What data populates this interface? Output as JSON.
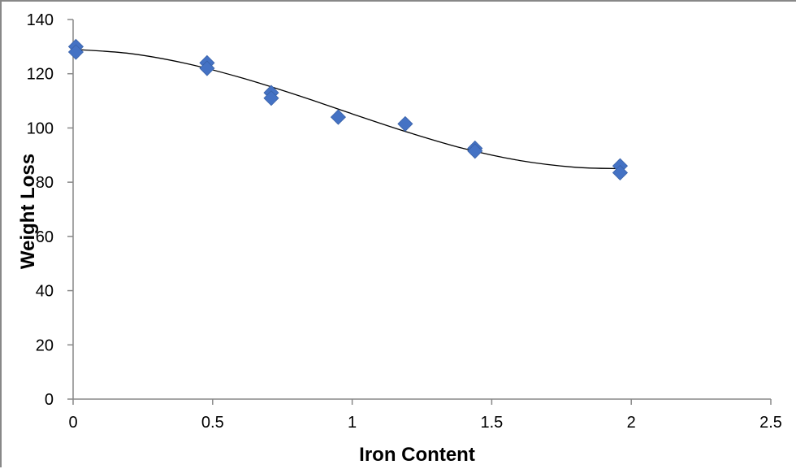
{
  "chart_data": {
    "type": "scatter",
    "title": "",
    "xlabel": "Iron Content",
    "ylabel": "Weight Loss",
    "xlim": [
      0,
      2.5
    ],
    "ylim": [
      0,
      140
    ],
    "x_ticks": [
      "0",
      "0.5",
      "1",
      "1.5",
      "2",
      "2.5"
    ],
    "y_ticks": [
      "0",
      "20",
      "40",
      "60",
      "80",
      "100",
      "120",
      "140"
    ],
    "grid": false,
    "legend": "none",
    "marker": "diamond",
    "marker_color": "#4472C4",
    "trendline_color": "#000000",
    "points": [
      {
        "x": 0.01,
        "y": 130
      },
      {
        "x": 0.01,
        "y": 128
      },
      {
        "x": 0.48,
        "y": 124
      },
      {
        "x": 0.48,
        "y": 122
      },
      {
        "x": 0.71,
        "y": 113
      },
      {
        "x": 0.71,
        "y": 111
      },
      {
        "x": 0.95,
        "y": 104
      },
      {
        "x": 1.19,
        "y": 101.5
      },
      {
        "x": 1.44,
        "y": 92.5
      },
      {
        "x": 1.44,
        "y": 91.5
      },
      {
        "x": 1.96,
        "y": 86
      },
      {
        "x": 1.96,
        "y": 83.5
      }
    ],
    "trendline": {
      "type": "polynomial",
      "x_range": [
        0,
        1.96
      ],
      "curve_points": [
        {
          "x": 0.0,
          "y": 129
        },
        {
          "x": 0.2,
          "y": 127.5
        },
        {
          "x": 0.4,
          "y": 123.9
        },
        {
          "x": 0.6,
          "y": 118.6
        },
        {
          "x": 0.8,
          "y": 112.2
        },
        {
          "x": 1.0,
          "y": 105.2
        },
        {
          "x": 1.2,
          "y": 98.4
        },
        {
          "x": 1.4,
          "y": 92.4
        },
        {
          "x": 1.6,
          "y": 88.0
        },
        {
          "x": 1.8,
          "y": 85.5
        },
        {
          "x": 1.96,
          "y": 85.0
        }
      ]
    }
  }
}
